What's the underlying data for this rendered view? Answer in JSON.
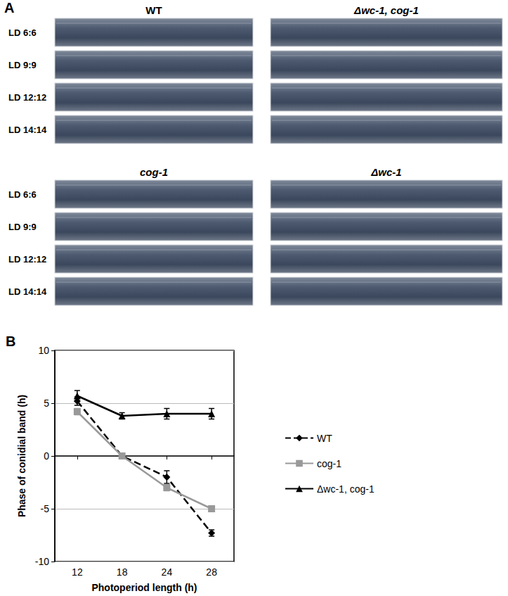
{
  "panel_a": {
    "label": "A",
    "conditions": [
      "LD 6:6",
      "LD 9:9",
      "LD 12:12",
      "LD 14:14"
    ],
    "strains": [
      "WT",
      "Δwc-1, cog-1",
      "cog-1",
      "Δwc-1"
    ]
  },
  "panel_b": {
    "label": "B"
  },
  "chart_data": {
    "type": "line",
    "x_label": "Photoperiod length (h)",
    "y_label": "Phase of conidial band (h)",
    "categories": [
      "12",
      "18",
      "24",
      "28"
    ],
    "ylim": [
      -10,
      10
    ],
    "yticks": [
      -10,
      -5,
      0,
      5,
      10
    ],
    "grid": true,
    "legend": "right",
    "series": [
      {
        "name": "WT",
        "color": "#000000",
        "line_style": "dashed",
        "marker": "diamond",
        "values": [
          5.2,
          0,
          -2,
          -7.3
        ],
        "errors": [
          0.4,
          0.2,
          0.6,
          0.3
        ]
      },
      {
        "name": "cog-1",
        "color": "#999999",
        "line_style": "solid",
        "marker": "square",
        "values": [
          4.2,
          0,
          -3,
          -5
        ],
        "errors": [
          0.3,
          0.2,
          0.3,
          0.2
        ]
      },
      {
        "name": "Δwc-1, cog-1",
        "color": "#000000",
        "line_style": "solid",
        "marker": "triangle",
        "values": [
          5.7,
          3.8,
          4.0,
          4.0
        ],
        "errors": [
          0.5,
          0.3,
          0.5,
          0.5
        ]
      }
    ]
  }
}
